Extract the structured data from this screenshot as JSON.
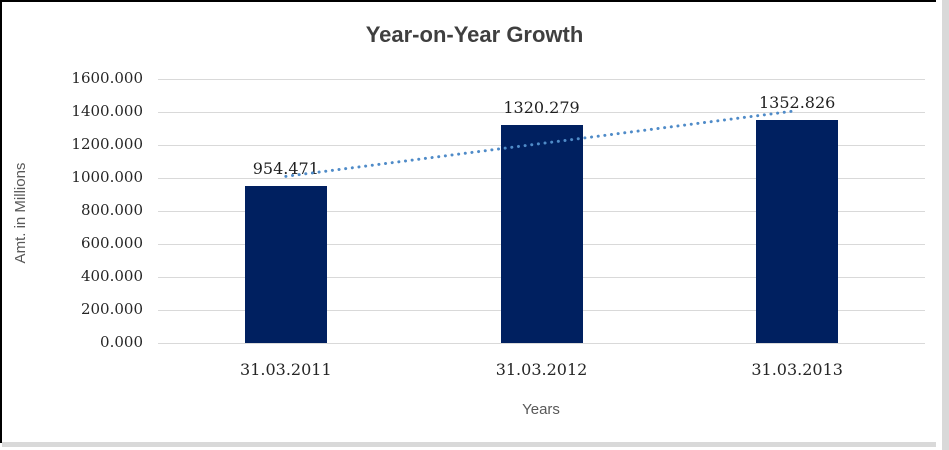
{
  "chart_data": {
    "type": "bar",
    "title": "Year-on-Year Growth",
    "xlabel": "Years",
    "ylabel": "Amt. in Millions",
    "categories": [
      "31.03.2011",
      "31.03.2012",
      "31.03.2013"
    ],
    "values": [
      954.471,
      1320.279,
      1352.826
    ],
    "data_labels": [
      "954.471",
      "1320.279",
      "1352.826"
    ],
    "ylim": [
      0,
      1600
    ],
    "ytick_step": 200,
    "ytick_decimals": 3,
    "ytick_labels": [
      "0.000",
      "200.000",
      "400.000",
      "600.000",
      "800.000",
      "1000.000",
      "1200.000",
      "1400.000",
      "1600.000"
    ],
    "grid": true,
    "legend": "none",
    "trendline": {
      "present": true,
      "style": "dotted-linear"
    },
    "colors": {
      "bar_fill": "#002060",
      "trendline": "#4f8bc8",
      "gridline": "#d9d9d9",
      "title_text": "#3f3f3f",
      "axis_title_text": "#595959",
      "tick_text": "#262626",
      "frame_border": "#000000",
      "page_edge": "#d9d9d9"
    }
  }
}
